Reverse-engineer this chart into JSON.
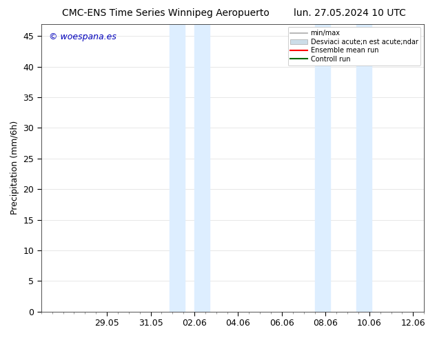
{
  "title_left": "CMC-ENS Time Series Winnipeg Aeropuerto",
  "title_right": "lun. 27.05.2024 10 UTC",
  "ylabel": "Precipitation (mm/6h)",
  "watermark": "© woespana.es",
  "ylim": [
    0,
    47
  ],
  "yticks": [
    0,
    5,
    10,
    15,
    20,
    25,
    30,
    35,
    40,
    45
  ],
  "bg_color": "#ffffff",
  "shaded_color": "#ddeeff",
  "x_min": -1.0,
  "x_max": 16.5,
  "shaded_regions": [
    [
      4.85,
      5.55
    ],
    [
      6.0,
      6.7
    ],
    [
      11.5,
      12.2
    ],
    [
      13.4,
      14.1
    ]
  ],
  "xtick_positions": [
    2,
    4,
    6,
    8,
    10,
    12,
    14,
    16
  ],
  "xtick_labels": [
    "29.05",
    "31.05",
    "02.06",
    "04.06",
    "06.06",
    "08.06",
    "10.06",
    "12.06"
  ],
  "legend_label_minmax": "min/max",
  "legend_label_std": "Desviaci acute;n est acute;ndar",
  "legend_label_ensemble": "Ensemble mean run",
  "legend_label_control": "Controll run",
  "color_minmax": "#aaaaaa",
  "color_std": "#ccdde8",
  "color_ensemble": "#ff0000",
  "color_control": "#006600",
  "title_fontsize": 10,
  "axis_fontsize": 9,
  "legend_fontsize": 7,
  "watermark_color": "#0000bb"
}
